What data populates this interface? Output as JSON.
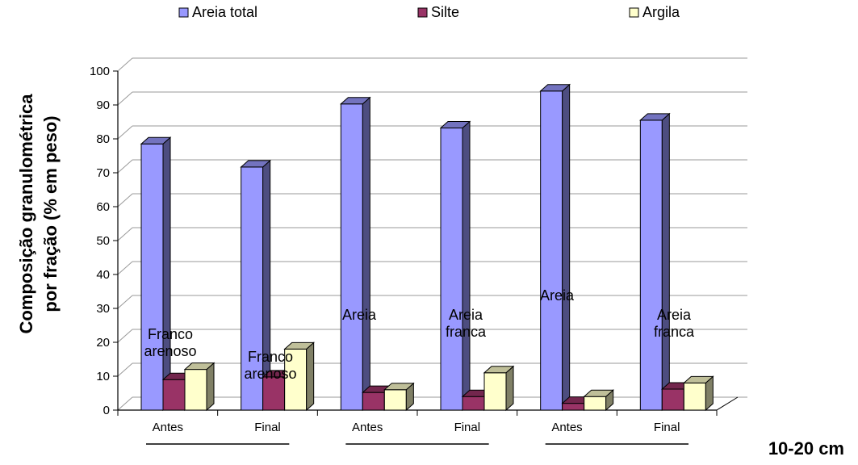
{
  "chart_data": {
    "type": "bar",
    "categories": [
      "Antes",
      "Final",
      "Antes",
      "Final",
      "Antes",
      "Final"
    ],
    "series": [
      {
        "name": "Areia total",
        "values": [
          78.5,
          71.7,
          90.3,
          83.2,
          94.1,
          85.5
        ],
        "color": "#9999FF"
      },
      {
        "name": "Silte",
        "values": [
          9.0,
          9.8,
          5.2,
          4.0,
          2.0,
          6.2
        ],
        "color": "#993366"
      },
      {
        "name": "Argila",
        "values": [
          12.0,
          18.0,
          6.0,
          11.0,
          4.0,
          8.0
        ],
        "color": "#FFFFCC"
      }
    ],
    "annotations": [
      "Franco arenoso",
      "Franco arenoso",
      "Areia",
      "Areia franca",
      "Areia",
      "Areia franca"
    ],
    "ylabel_lines": [
      "Composição granulométrica",
      "por fração (% em peso)"
    ],
    "ylim": [
      0,
      100
    ],
    "yticks": [
      0,
      10,
      20,
      30,
      40,
      50,
      60,
      70,
      80,
      90,
      100
    ],
    "grid": true,
    "legend_position": "top",
    "depth_label": "10-20 cm"
  }
}
